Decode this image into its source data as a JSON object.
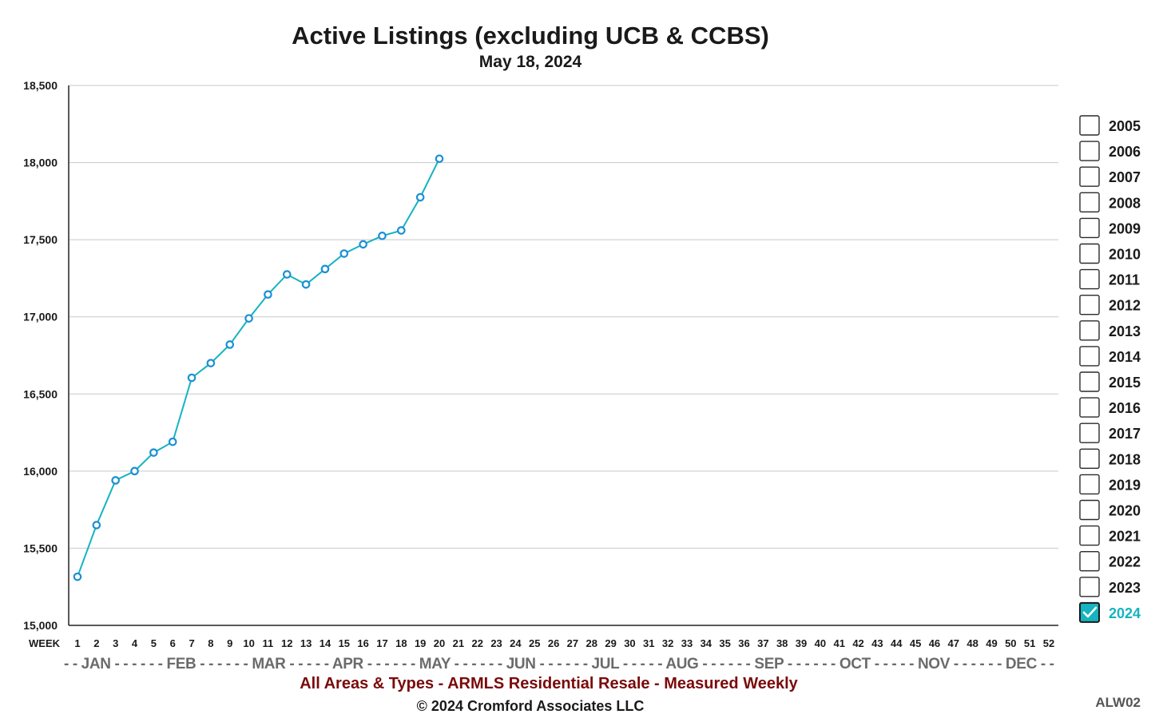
{
  "chart_data": {
    "type": "line",
    "title": "Active Listings (excluding UCB & CCBS)",
    "subtitle": "May 18, 2024",
    "xlabel": "WEEK",
    "ylabel": "",
    "ylim": [
      15000,
      18500
    ],
    "yticks": [
      "15,000",
      "15,500",
      "16,000",
      "16,500",
      "17,000",
      "17,500",
      "18,000",
      "18,500"
    ],
    "ytick_values": [
      15000,
      15500,
      16000,
      16500,
      17000,
      17500,
      18000,
      18500
    ],
    "x_categories": [
      "1",
      "2",
      "3",
      "4",
      "5",
      "6",
      "7",
      "8",
      "9",
      "10",
      "11",
      "12",
      "13",
      "14",
      "15",
      "16",
      "17",
      "18",
      "19",
      "20",
      "21",
      "22",
      "23",
      "24",
      "25",
      "26",
      "27",
      "28",
      "29",
      "30",
      "31",
      "32",
      "33",
      "34",
      "35",
      "36",
      "37",
      "38",
      "39",
      "40",
      "41",
      "42",
      "43",
      "44",
      "45",
      "46",
      "47",
      "48",
      "49",
      "50",
      "51",
      "52"
    ],
    "month_row": "- - JAN - - - - - - FEB - - - - - - MAR - - - - - APR - - - - - - MAY - - - - - - JUN - - - - - - JUL - - - - - AUG - - - - - - SEP - - - - - - OCT - - - - - NOV - - - - - - DEC - -",
    "grid": true,
    "legend_position": "right",
    "series": [
      {
        "name": "2024",
        "color": "#16b3c0",
        "marker_color": "#1a8fd6",
        "x": [
          1,
          2,
          3,
          4,
          5,
          6,
          7,
          8,
          9,
          10,
          11,
          12,
          13,
          14,
          15,
          16,
          17,
          18,
          19,
          20
        ],
        "values": [
          15315,
          15650,
          15940,
          16000,
          16120,
          16190,
          16605,
          16700,
          16820,
          16990,
          17145,
          17275,
          17210,
          17310,
          17410,
          17470,
          17525,
          17560,
          17775,
          18025
        ]
      }
    ],
    "legend": [
      {
        "label": "2005",
        "checked": false
      },
      {
        "label": "2006",
        "checked": false
      },
      {
        "label": "2007",
        "checked": false
      },
      {
        "label": "2008",
        "checked": false
      },
      {
        "label": "2009",
        "checked": false
      },
      {
        "label": "2010",
        "checked": false
      },
      {
        "label": "2011",
        "checked": false
      },
      {
        "label": "2012",
        "checked": false
      },
      {
        "label": "2013",
        "checked": false
      },
      {
        "label": "2014",
        "checked": false
      },
      {
        "label": "2015",
        "checked": false
      },
      {
        "label": "2016",
        "checked": false
      },
      {
        "label": "2017",
        "checked": false
      },
      {
        "label": "2018",
        "checked": false
      },
      {
        "label": "2019",
        "checked": false
      },
      {
        "label": "2020",
        "checked": false
      },
      {
        "label": "2021",
        "checked": false
      },
      {
        "label": "2022",
        "checked": false
      },
      {
        "label": "2023",
        "checked": false
      },
      {
        "label": "2024",
        "checked": true
      }
    ],
    "footer_line1": "All Areas & Types - ARMLS Residential Resale - Measured Weekly",
    "footer_line2": "© 2024 Cromford Associates LLC",
    "chart_code": "ALW02"
  }
}
